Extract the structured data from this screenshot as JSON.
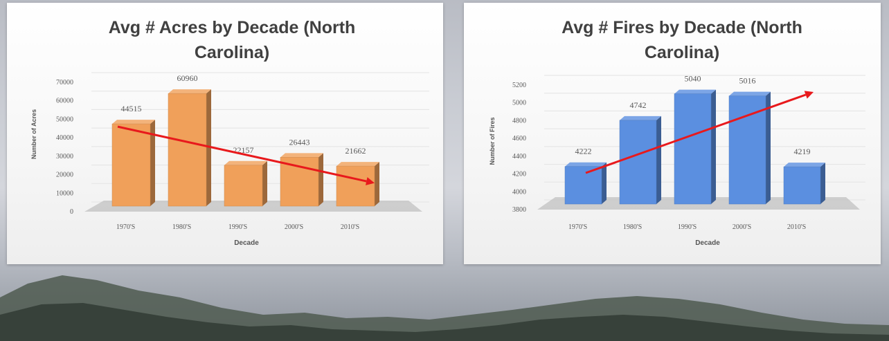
{
  "chart_data": [
    {
      "type": "bar",
      "title": "Avg # Acres by Decade (North Carolina)",
      "title_lines": [
        "Avg # Acres by Decade (North",
        "Carolina)"
      ],
      "xlabel": "Decade",
      "ylabel": "Number of Acres",
      "categories": [
        "1970'S",
        "1980'S",
        "1990'S",
        "2000'S",
        "2010'S"
      ],
      "values": [
        44515,
        60960,
        22157,
        26443,
        21662
      ],
      "data_labels": [
        "44515",
        "60960",
        "22157",
        "26443",
        "21662"
      ],
      "ylim": [
        0,
        70000
      ],
      "yticks": [
        0,
        10000,
        20000,
        30000,
        40000,
        50000,
        60000,
        70000
      ],
      "ytick_labels": [
        "0",
        "10000",
        "20000",
        "30000",
        "40000",
        "50000",
        "60000",
        "70000"
      ],
      "grid": true,
      "style": "3d-column",
      "bar_color": "#f0a05a",
      "trend_arrow": {
        "direction": "down",
        "from_value": 43000,
        "to_value": 12500,
        "color": "#e8191c"
      }
    },
    {
      "type": "bar",
      "title": "Avg # Fires by Decade (North Carolina)",
      "title_lines": [
        "Avg # Fires by Decade (North",
        "Carolina)"
      ],
      "xlabel": "Decade",
      "ylabel": "Number of Fires",
      "categories": [
        "1970'S",
        "1980'S",
        "1990'S",
        "2000'S",
        "2010'S"
      ],
      "values": [
        4222,
        4742,
        5040,
        5016,
        4219
      ],
      "data_labels": [
        "4222",
        "4742",
        "5040",
        "5016",
        "4219"
      ],
      "ylim": [
        3800,
        5200
      ],
      "yticks": [
        3800,
        4000,
        4200,
        4400,
        4600,
        4800,
        5000,
        5200
      ],
      "ytick_labels": [
        "3800",
        "4000",
        "4200",
        "4400",
        "4600",
        "4800",
        "5000",
        "5200"
      ],
      "grid": true,
      "style": "3d-column",
      "bar_color": "#5b8fe0",
      "trend_arrow": {
        "direction": "up",
        "from_value": 4150,
        "to_value": 5060,
        "color": "#e8191c"
      }
    }
  ]
}
